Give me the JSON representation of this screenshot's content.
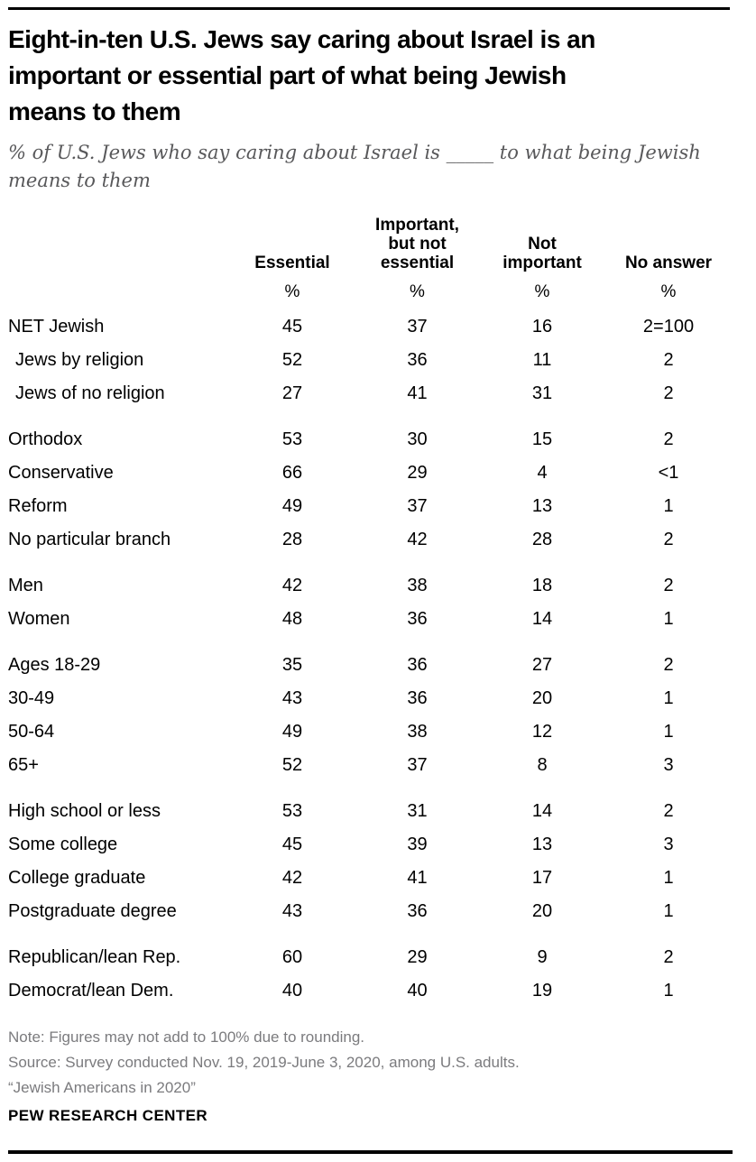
{
  "chart_data": {
    "type": "table",
    "title_lines": [
      "Eight-in-ten U.S. Jews say caring about Israel is an",
      "important or essential part of what being Jewish",
      "means to them"
    ],
    "subtitle_lines": [
      "% of U.S. Jews who say caring about Israel is _____ to what being Jewish",
      "means to them"
    ],
    "columns": [
      "Essential",
      "Important,\nbut not\nessential",
      "Not\nimportant",
      "No answer"
    ],
    "unit": "%",
    "rows": [
      {
        "label": "NET Jewish",
        "indent": false,
        "group_start": false,
        "values": [
          "45",
          "37",
          "16",
          "2=100"
        ]
      },
      {
        "label": "Jews by religion",
        "indent": true,
        "group_start": false,
        "values": [
          "52",
          "36",
          "11",
          "2"
        ]
      },
      {
        "label": "Jews of no religion",
        "indent": true,
        "group_start": false,
        "values": [
          "27",
          "41",
          "31",
          "2"
        ]
      },
      {
        "label": "Orthodox",
        "indent": false,
        "group_start": true,
        "values": [
          "53",
          "30",
          "15",
          "2"
        ]
      },
      {
        "label": "Conservative",
        "indent": false,
        "group_start": false,
        "values": [
          "66",
          "29",
          "4",
          "<1"
        ]
      },
      {
        "label": "Reform",
        "indent": false,
        "group_start": false,
        "values": [
          "49",
          "37",
          "13",
          "1"
        ]
      },
      {
        "label": "No particular branch",
        "indent": false,
        "group_start": false,
        "values": [
          "28",
          "42",
          "28",
          "2"
        ]
      },
      {
        "label": "Men",
        "indent": false,
        "group_start": true,
        "values": [
          "42",
          "38",
          "18",
          "2"
        ]
      },
      {
        "label": "Women",
        "indent": false,
        "group_start": false,
        "values": [
          "48",
          "36",
          "14",
          "1"
        ]
      },
      {
        "label": "Ages 18-29",
        "indent": false,
        "group_start": true,
        "values": [
          "35",
          "36",
          "27",
          "2"
        ]
      },
      {
        "label": "30-49",
        "indent": false,
        "group_start": false,
        "values": [
          "43",
          "36",
          "20",
          "1"
        ]
      },
      {
        "label": "50-64",
        "indent": false,
        "group_start": false,
        "values": [
          "49",
          "38",
          "12",
          "1"
        ]
      },
      {
        "label": "65+",
        "indent": false,
        "group_start": false,
        "values": [
          "52",
          "37",
          "8",
          "3"
        ]
      },
      {
        "label": "High school or less",
        "indent": false,
        "group_start": true,
        "values": [
          "53",
          "31",
          "14",
          "2"
        ]
      },
      {
        "label": "Some college",
        "indent": false,
        "group_start": false,
        "values": [
          "45",
          "39",
          "13",
          "3"
        ]
      },
      {
        "label": "College graduate",
        "indent": false,
        "group_start": false,
        "values": [
          "42",
          "41",
          "17",
          "1"
        ]
      },
      {
        "label": "Postgraduate degree",
        "indent": false,
        "group_start": false,
        "values": [
          "43",
          "36",
          "20",
          "1"
        ]
      },
      {
        "label": "Republican/lean Rep.",
        "indent": false,
        "group_start": true,
        "values": [
          "60",
          "29",
          "9",
          "2"
        ]
      },
      {
        "label": "Democrat/lean Dem.",
        "indent": false,
        "group_start": false,
        "values": [
          "40",
          "40",
          "19",
          "1"
        ]
      }
    ],
    "notes": [
      "Note: Figures may not add to 100% due to rounding.",
      "Source: Survey conducted Nov. 19, 2019-June 3, 2020, among U.S. adults.",
      "“Jewish Americans in 2020”"
    ],
    "brand": "PEW RESEARCH CENTER",
    "colors": {
      "text": "#000000",
      "subtitle_gray": "#58585a",
      "note_gray": "#7b7b7e",
      "rule": "#000000"
    }
  }
}
